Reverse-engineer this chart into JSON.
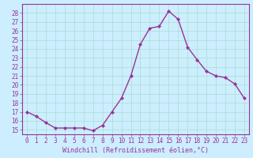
{
  "x": [
    0,
    1,
    2,
    3,
    4,
    5,
    6,
    7,
    8,
    9,
    10,
    11,
    12,
    13,
    14,
    15,
    16,
    17,
    18,
    19,
    20,
    21,
    22,
    23
  ],
  "y": [
    17,
    16.5,
    15.8,
    15.2,
    15.2,
    15.2,
    15.2,
    14.9,
    15.5,
    17.0,
    18.5,
    21.0,
    24.5,
    26.3,
    26.5,
    28.2,
    27.3,
    24.2,
    22.8,
    21.5,
    21.0,
    20.8,
    20.1,
    18.5
  ],
  "xlim": [
    -0.5,
    23.5
  ],
  "ylim": [
    14.5,
    29.0
  ],
  "yticks": [
    15,
    16,
    17,
    18,
    19,
    20,
    21,
    22,
    23,
    24,
    25,
    26,
    27,
    28
  ],
  "xticks": [
    0,
    1,
    2,
    3,
    4,
    5,
    6,
    7,
    8,
    9,
    10,
    11,
    12,
    13,
    14,
    15,
    16,
    17,
    18,
    19,
    20,
    21,
    22,
    23
  ],
  "xlabel": "Windchill (Refroidissement éolien,°C)",
  "line_color": "#993399",
  "marker": "D",
  "marker_size": 2.0,
  "background_color": "#cceeff",
  "grid_color": "#aaddcc",
  "tick_color": "#993399",
  "line_width": 1.0,
  "tick_fontsize": 5.5,
  "xlabel_fontsize": 6.0
}
